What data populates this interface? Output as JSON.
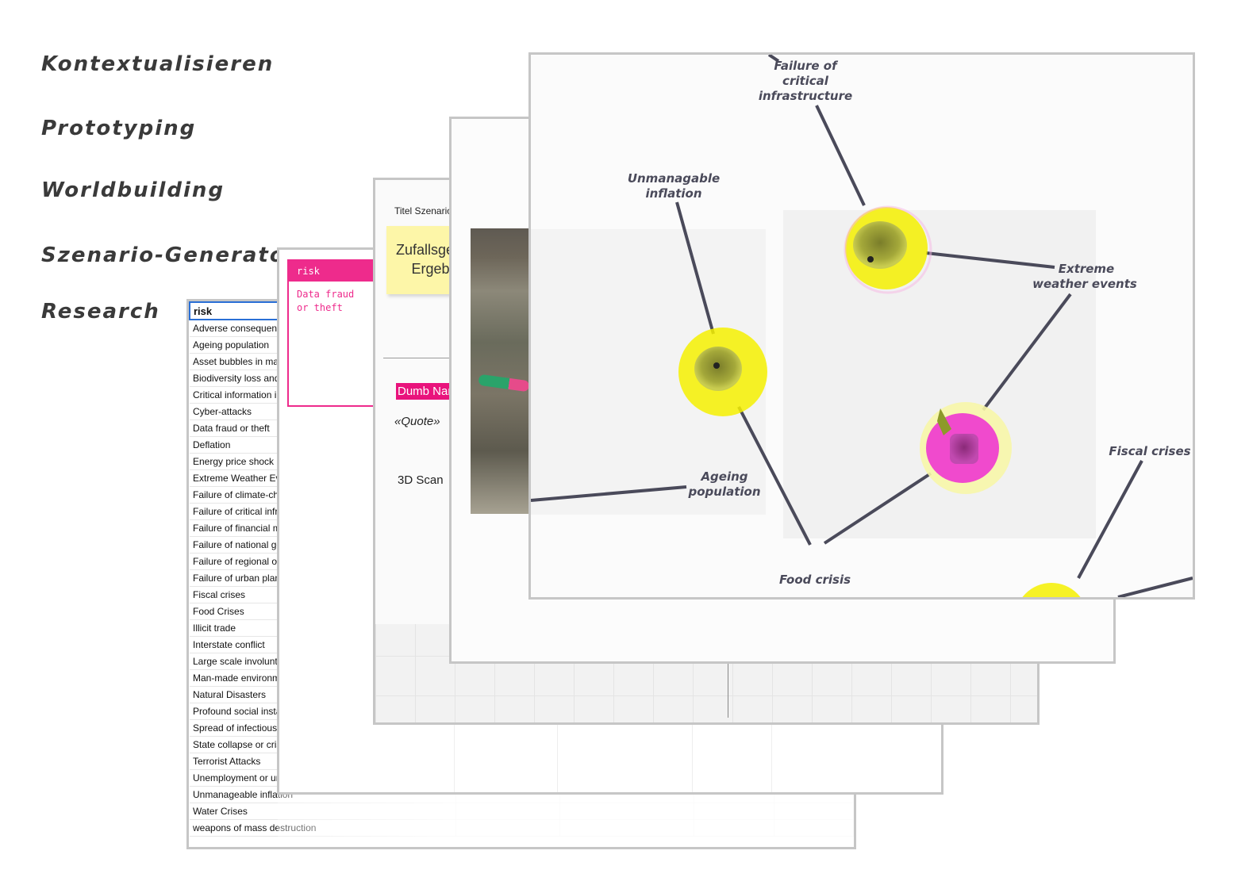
{
  "stages": [
    "Kontextualisieren",
    "Prototyping",
    "Worldbuilding",
    "Szenario-Generator",
    "Research"
  ],
  "sheet": {
    "header": "risk",
    "rows": [
      "Adverse consequences of technological advances",
      "Ageing population",
      "Asset bubbles in major economies",
      "Biodiversity loss and ecosystem collapse",
      "Critical information infrastructure breakdown",
      "Cyber-attacks",
      "Data fraud  or theft",
      "Deflation",
      "Energy price shock",
      "Extreme Weather Events",
      "Failure of climate-change mitigation and adaptation",
      "Failure of critical infrastructure",
      "Failure of financial mechanism or institution",
      "Failure of national governance",
      "Failure of regional or global governance",
      "Failure of urban planning",
      "Fiscal crises",
      "Food Crises",
      "Illicit trade",
      "Interstate conflict",
      "Large scale involuntary migration",
      "Man-made environmental disasters",
      "Natural Disasters",
      "Profound social instability",
      "Spread of infectious diseases",
      "State collapse or crisis",
      "Terrorist Attacks",
      "Unemployment or underemployment",
      "Unmanageable inflation",
      "Water Crises",
      "weapons of mass destruction"
    ]
  },
  "sticky": {
    "header": "risk",
    "body": "Data fraud or theft",
    "color": "#ee2b8c"
  },
  "template": {
    "title": "Titel Szenario",
    "yellow_line1": "Zufallsgenerator",
    "yellow_line2": "Ergebnis",
    "dumb_name": "Dumb Name",
    "quote": "«Quote»",
    "scan": "3D Scan"
  },
  "graph": {
    "labels": {
      "failure_infra": [
        "Failure of",
        "critical",
        "infrastructure"
      ],
      "inflation": [
        "Unmanagable",
        "inflation"
      ],
      "weather": [
        "Extreme",
        "weather events"
      ],
      "ageing": [
        "Ageing",
        "population"
      ],
      "food": [
        "Food crisis"
      ],
      "fiscal": [
        "Fiscal crises"
      ]
    },
    "colors": {
      "node": "#f5f000",
      "accent": "#ee2b8c",
      "edge": "#4a4a5a"
    }
  }
}
